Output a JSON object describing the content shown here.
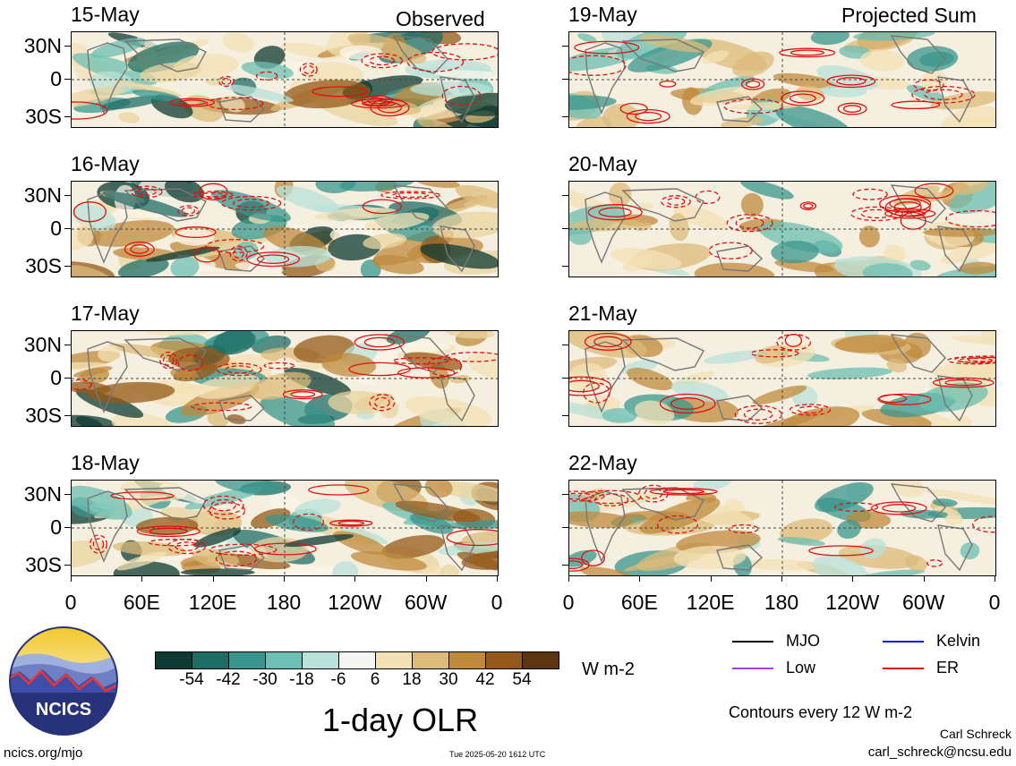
{
  "headers": {
    "observed": "Observed",
    "projected": "Projected Sum"
  },
  "panels_left": [
    "15-May",
    "16-May",
    "17-May",
    "18-May"
  ],
  "panels_right": [
    "19-May",
    "20-May",
    "21-May",
    "22-May"
  ],
  "lat_labels": [
    "30N",
    "0",
    "30S"
  ],
  "lon_labels": [
    "0",
    "60E",
    "120E",
    "180",
    "120W",
    "60W",
    "0"
  ],
  "colorbar": {
    "labels": [
      "-54",
      "-42",
      "-30",
      "-18",
      "-6",
      "6",
      "18",
      "30",
      "42",
      "54"
    ],
    "colors": [
      "#0d3b33",
      "#1f6e66",
      "#3a968c",
      "#6cbfb2",
      "#b9e2da",
      "#f4f4f2",
      "#f3e1b6",
      "#dcbb7a",
      "#bf8a3e",
      "#94591a",
      "#5d3410"
    ],
    "units": "W m-2"
  },
  "title": "1-day OLR",
  "legend": [
    {
      "label": "MJO",
      "color": "#000000"
    },
    {
      "label": "Kelvin",
      "color": "#1010e0"
    },
    {
      "label": "Low",
      "color": "#a040e0"
    },
    {
      "label": "ER",
      "color": "#e01010"
    }
  ],
  "contours_note": "Contours every 12 W m-2",
  "author": "Carl Schreck",
  "email": "carl_schreck@ncsu.edu",
  "site": "ncics.org/mjo",
  "timestamp": "Tue 2025-05-20 1612 UTC",
  "logo_text": "NCICS"
}
